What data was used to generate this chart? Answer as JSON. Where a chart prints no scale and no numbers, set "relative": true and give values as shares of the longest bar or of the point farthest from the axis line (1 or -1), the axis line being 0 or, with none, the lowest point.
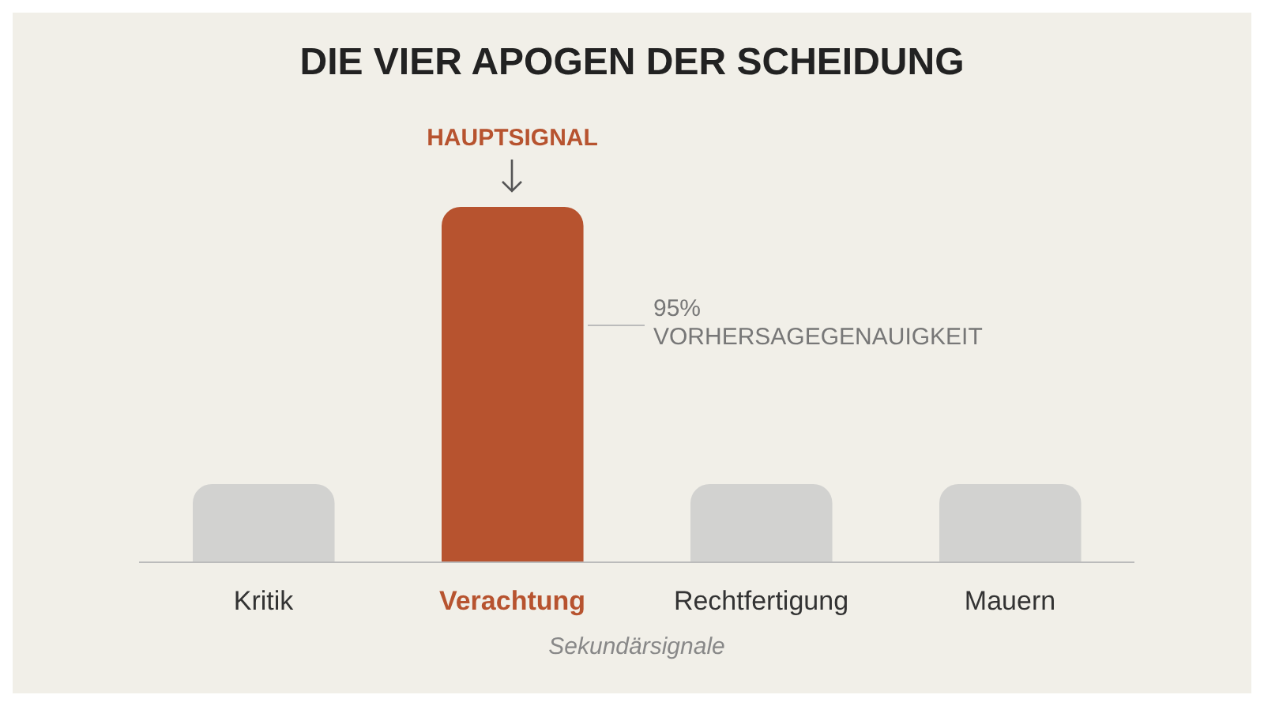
{
  "chart_data": {
    "type": "bar",
    "title": "DIE VIER APOGEN DER SCHEIDUNG",
    "xlabel": "Sekundärsignale",
    "relative": true,
    "categories": [
      "Kritik",
      "Verachtung",
      "Rechtfertigung",
      "Mauern"
    ],
    "values": [
      0.22,
      1,
      0.22,
      0.22
    ],
    "colors": [
      "#d2d2d0",
      "#b7532f",
      "#d2d2d0",
      "#d2d2d0"
    ],
    "annotations": [
      {
        "text": "HAUPTSIGNAL",
        "x": "Verachtung",
        "y": 1
      },
      "95%\nVORHERSAGEGENAUIGKEIT"
    ],
    "grid": false,
    "legend": false
  }
}
